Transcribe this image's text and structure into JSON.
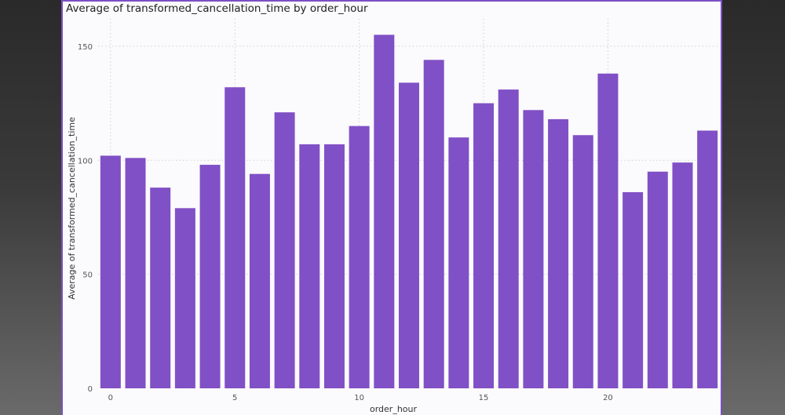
{
  "panel": {
    "title": "Average of transformed_cancellation_time by order_hour"
  },
  "colors": {
    "bar": "#8050c6",
    "grid": "#cfcfd6",
    "border": "#7b4fc4"
  },
  "chart_data": {
    "type": "bar",
    "title": "Average of transformed_cancellation_time by order_hour",
    "xlabel": "order_hour",
    "ylabel": "Average of transformed_cancellation_time",
    "categories": [
      0,
      1,
      2,
      3,
      4,
      5,
      6,
      7,
      8,
      9,
      10,
      11,
      12,
      13,
      14,
      15,
      16,
      17,
      18,
      19,
      20,
      21,
      22,
      23,
      24
    ],
    "values": [
      102,
      101,
      88,
      79,
      98,
      132,
      94,
      121,
      107,
      107,
      115,
      155,
      134,
      144,
      110,
      125,
      131,
      122,
      118,
      111,
      138,
      86,
      95,
      99,
      113
    ],
    "xticks": [
      0,
      5,
      10,
      15,
      20
    ],
    "yticks": [
      0,
      50,
      100,
      150
    ],
    "ylim": [
      0,
      162
    ],
    "grid": true,
    "legend": "none"
  }
}
